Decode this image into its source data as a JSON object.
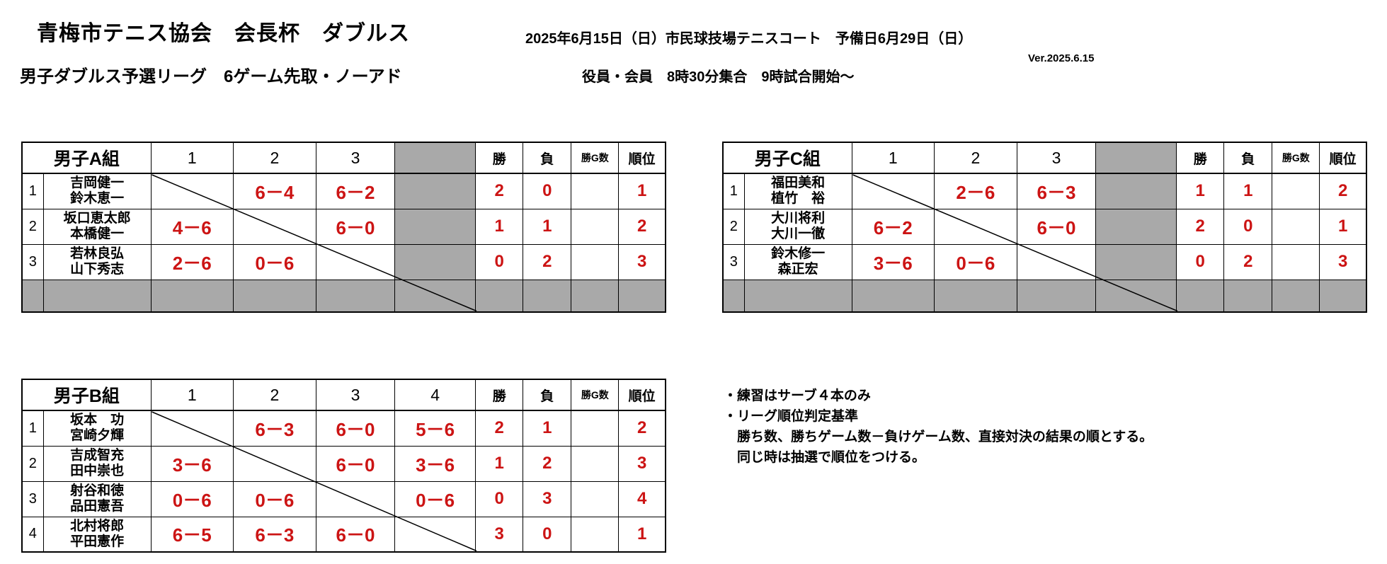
{
  "header": {
    "title": "青梅市テニス協会　会長杯　ダブルス",
    "date_line": "2025年6月15日（日）市民球技場テニスコート　予備日6月29日（日）",
    "version": "Ver.2025.6.15",
    "subtitle": "男子ダブルス予選リーグ　6ゲーム先取・ノーアド",
    "assembly_line": "役員・会員　8時30分集合　9時試合開始～"
  },
  "stat_headers": [
    "勝",
    "負",
    "勝G数",
    "順位"
  ],
  "tables": [
    {
      "group": "男子A組",
      "round_cols": [
        "1",
        "2",
        "3",
        ""
      ],
      "unused_col": 3,
      "has_unused_bottom_row": true,
      "rows": [
        {
          "num": "1",
          "names": [
            "吉岡健一",
            "鈴木恵一"
          ],
          "scores": [
            "",
            "6－4",
            "6－2",
            ""
          ],
          "win": "2",
          "loss": "0",
          "wgames": "",
          "rank": "1"
        },
        {
          "num": "2",
          "names": [
            "坂口恵太郎",
            "本橋健一"
          ],
          "scores": [
            "4－6",
            "",
            "6－0",
            ""
          ],
          "win": "1",
          "loss": "1",
          "wgames": "",
          "rank": "2"
        },
        {
          "num": "3",
          "names": [
            "若林良弘",
            "山下秀志"
          ],
          "scores": [
            "2－6",
            "0－6",
            "",
            ""
          ],
          "win": "0",
          "loss": "2",
          "wgames": "",
          "rank": "3"
        }
      ]
    },
    {
      "group": "男子B組",
      "round_cols": [
        "1",
        "2",
        "3",
        "4"
      ],
      "unused_col": -1,
      "has_unused_bottom_row": false,
      "rows": [
        {
          "num": "1",
          "names": [
            "坂本　功",
            "宮崎夕輝"
          ],
          "scores": [
            "",
            "6－3",
            "6－0",
            "5－6"
          ],
          "win": "2",
          "loss": "1",
          "wgames": "",
          "rank": "2"
        },
        {
          "num": "2",
          "names": [
            "吉成智充",
            "田中崇也"
          ],
          "scores": [
            "3－6",
            "",
            "6－0",
            "3－6"
          ],
          "win": "1",
          "loss": "2",
          "wgames": "",
          "rank": "3"
        },
        {
          "num": "3",
          "names": [
            "射谷和徳",
            "品田憲吾"
          ],
          "scores": [
            "0－6",
            "0－6",
            "",
            "0－6"
          ],
          "win": "0",
          "loss": "3",
          "wgames": "",
          "rank": "4"
        },
        {
          "num": "4",
          "names": [
            "北村将郎",
            "平田憲作"
          ],
          "scores": [
            "6－5",
            "6－3",
            "6－0",
            ""
          ],
          "win": "3",
          "loss": "0",
          "wgames": "",
          "rank": "1"
        }
      ]
    },
    {
      "group": "男子C組",
      "round_cols": [
        "1",
        "2",
        "3",
        ""
      ],
      "unused_col": 3,
      "has_unused_bottom_row": true,
      "rows": [
        {
          "num": "1",
          "names": [
            "福田美和",
            "植竹　裕"
          ],
          "scores": [
            "",
            "2－6",
            "6－3",
            ""
          ],
          "win": "1",
          "loss": "1",
          "wgames": "",
          "rank": "2"
        },
        {
          "num": "2",
          "names": [
            "大川将利",
            "大川一徹"
          ],
          "scores": [
            "6－2",
            "",
            "6－0",
            ""
          ],
          "win": "2",
          "loss": "0",
          "wgames": "",
          "rank": "1"
        },
        {
          "num": "3",
          "names": [
            "鈴木修一",
            "森正宏"
          ],
          "scores": [
            "3－6",
            "0－6",
            "",
            ""
          ],
          "win": "0",
          "loss": "2",
          "wgames": "",
          "rank": "3"
        }
      ]
    }
  ],
  "notes": [
    "・練習はサーブ４本のみ",
    "・リーグ順位判定基準",
    "　勝ち数、勝ちゲーム数－負けゲーム数、直接対決の結果の順とする。",
    "　同じ時は抽選で順位をつける。"
  ],
  "colors": {
    "score_red": "#cc1414",
    "unused_gray": "#a9a9a9"
  }
}
